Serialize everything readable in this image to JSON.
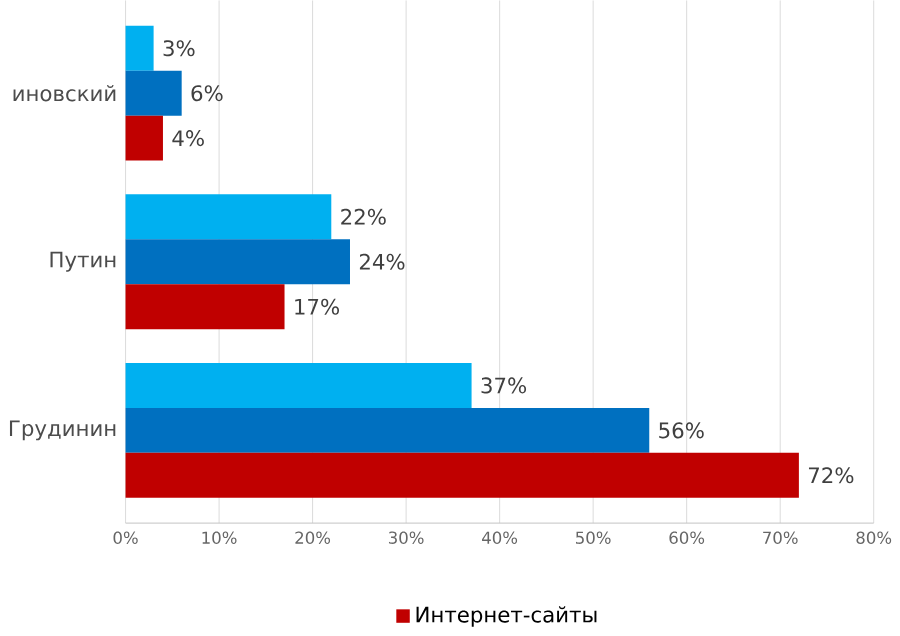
{
  "chart_data": {
    "type": "bar",
    "orientation": "horizontal",
    "categories": [
      "иновский",
      "Путин",
      "Грудинин"
    ],
    "series": [
      {
        "color": "#00b0f0",
        "values": [
          3,
          22,
          37
        ],
        "value_labels": [
          "3%",
          "22%",
          "37%"
        ]
      },
      {
        "color": "#0070c0",
        "values": [
          6,
          24,
          56
        ],
        "value_labels": [
          "6%",
          "24%",
          "56%"
        ]
      },
      {
        "name": "Интернет-сайты",
        "color": "#c00000",
        "values": [
          4,
          17,
          72
        ],
        "value_labels": [
          "4%",
          "17%",
          "72%"
        ]
      }
    ],
    "xlim": [
      0,
      80
    ],
    "xticks": [
      {
        "value": 0,
        "label": "0%"
      },
      {
        "value": 10,
        "label": "10%"
      },
      {
        "value": 20,
        "label": "20%"
      },
      {
        "value": 30,
        "label": "30%"
      },
      {
        "value": 40,
        "label": "40%"
      },
      {
        "value": 50,
        "label": "50%"
      },
      {
        "value": 60,
        "label": "60%"
      },
      {
        "value": 70,
        "label": "70%"
      },
      {
        "value": 80,
        "label": "80%"
      }
    ],
    "grid": "x",
    "legend": "bottom"
  }
}
